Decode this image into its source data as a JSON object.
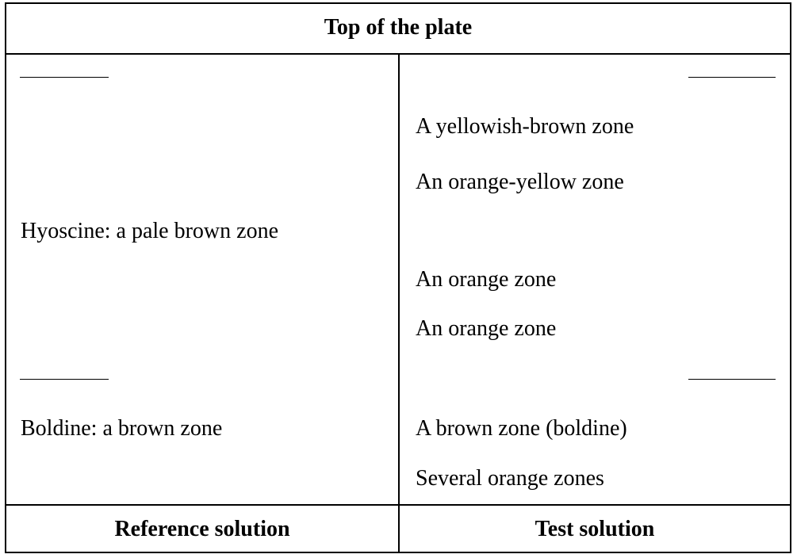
{
  "table": {
    "top_label": "Top of the plate",
    "reference_column": {
      "heading": "Reference solution",
      "zones": [
        "Hyoscine: a pale brown zone",
        "Boldine: a brown zone"
      ]
    },
    "test_column": {
      "heading": "Test solution",
      "zones": [
        "A yellowish-brown zone",
        "An orange-yellow zone",
        "An orange zone",
        "An orange zone",
        "A brown zone (boldine)",
        "Several orange zones"
      ]
    }
  }
}
